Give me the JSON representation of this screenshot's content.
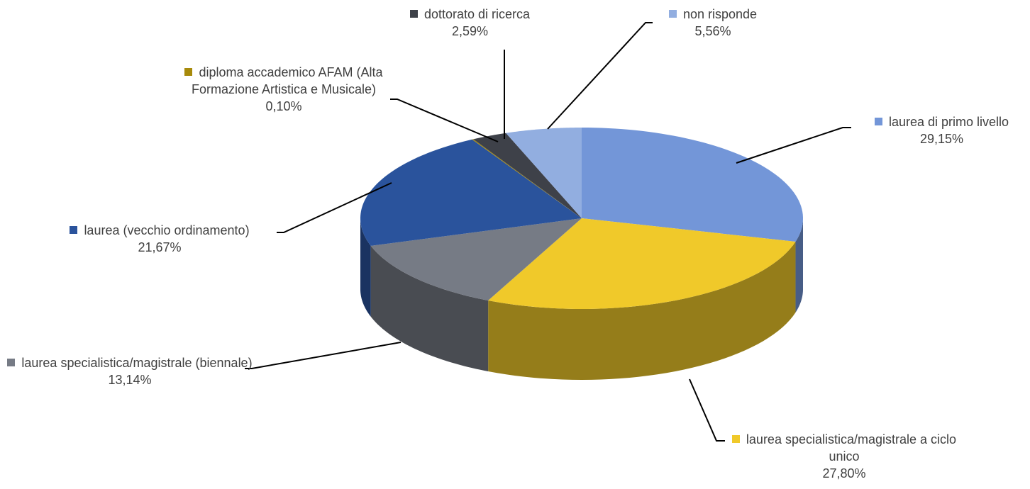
{
  "chart_data": {
    "type": "pie",
    "categories": [
      "laurea di primo livello",
      "laurea specialistica/magistrale a ciclo unico",
      "laurea specialistica/magistrale (biennale)",
      "laurea (vecchio ordinamento)",
      "diploma accademico AFAM (Alta Formazione Artistica e Musicale)",
      "dottorato di ricerca",
      "non risponde"
    ],
    "values": [
      29.15,
      27.8,
      13.14,
      21.67,
      0.1,
      2.59,
      5.56
    ],
    "value_labels": [
      "29,15%",
      "27,80%",
      "13,14%",
      "21,67%",
      "0,10%",
      "2,59%",
      "5,56%"
    ],
    "colors": [
      "#7396d8",
      "#f0c92a",
      "#767b85",
      "#2a539c",
      "#a78a0b",
      "#3e4149",
      "#92aee0"
    ]
  }
}
